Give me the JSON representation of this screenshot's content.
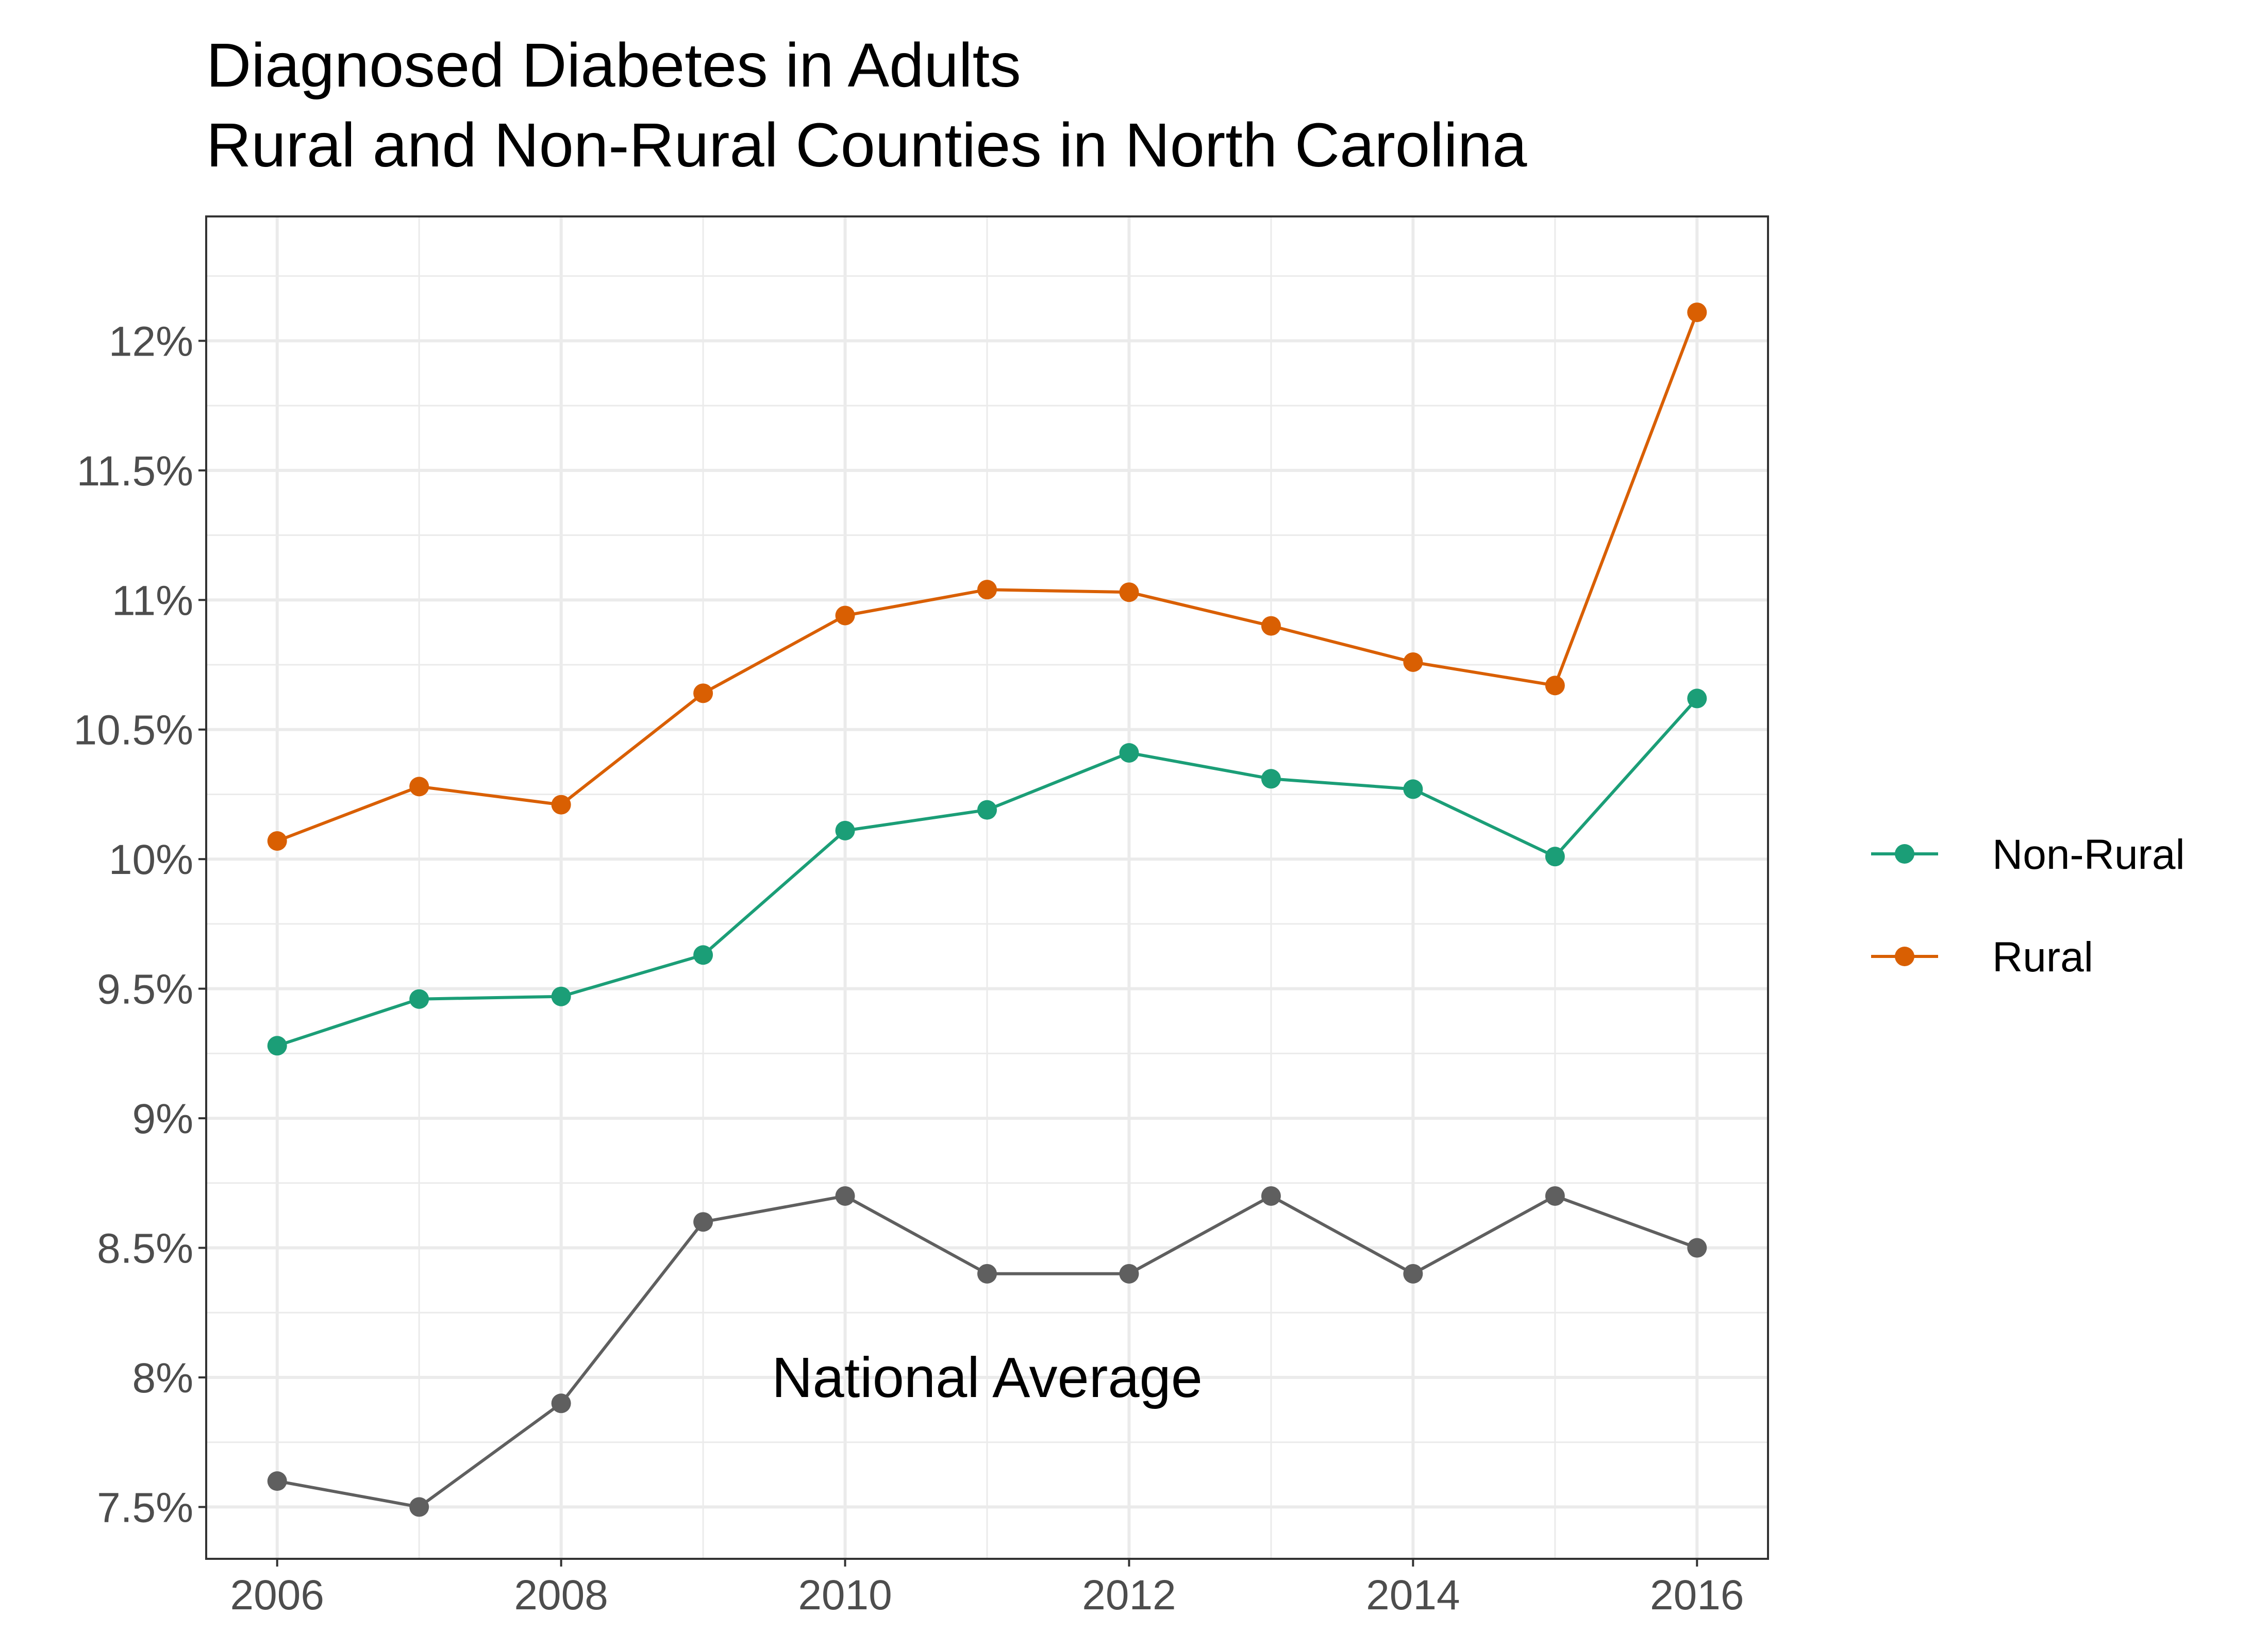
{
  "chart_data": {
    "type": "line",
    "title": "Diagnosed Diabetes in Adults",
    "subtitle": "Rural and Non-Rural Counties in North Carolina",
    "xlabel": "",
    "ylabel": "",
    "xlim": [
      2005.5,
      2016.5
    ],
    "ylim": [
      7.3,
      12.48
    ],
    "x_ticks": [
      2006,
      2008,
      2010,
      2012,
      2014,
      2016
    ],
    "x_tick_labels": [
      "2006",
      "2008",
      "2010",
      "2012",
      "2014",
      "2016"
    ],
    "y_ticks": [
      7.5,
      8,
      8.5,
      9,
      9.5,
      10,
      10.5,
      11,
      11.5,
      12
    ],
    "y_tick_labels": [
      "7.5%",
      "8%",
      "8.5%",
      "9%",
      "9.5%",
      "10%",
      "10.5%",
      "11%",
      "11.5%",
      "12%"
    ],
    "grid": true,
    "legend_position": "right",
    "x": [
      2006,
      2007,
      2008,
      2009,
      2010,
      2011,
      2012,
      2013,
      2014,
      2015,
      2016
    ],
    "series": [
      {
        "name": "Non-Rural",
        "color": "#1b9e77",
        "in_legend": true,
        "values": [
          9.28,
          9.46,
          9.47,
          9.63,
          10.11,
          10.19,
          10.41,
          10.31,
          10.27,
          10.01,
          10.62
        ]
      },
      {
        "name": "Rural",
        "color": "#d95f02",
        "in_legend": true,
        "values": [
          10.07,
          10.28,
          10.21,
          10.64,
          10.94,
          11.04,
          11.03,
          10.9,
          10.76,
          10.67,
          12.11
        ]
      },
      {
        "color": "#5f5f5f",
        "in_legend": false,
        "values": [
          7.6,
          7.5,
          7.9,
          8.6,
          8.7,
          8.4,
          8.4,
          8.7,
          8.4,
          8.7,
          8.5
        ]
      }
    ],
    "annotations": [
      {
        "text": "National Average",
        "x": 2011,
        "y": 8.0
      }
    ]
  }
}
